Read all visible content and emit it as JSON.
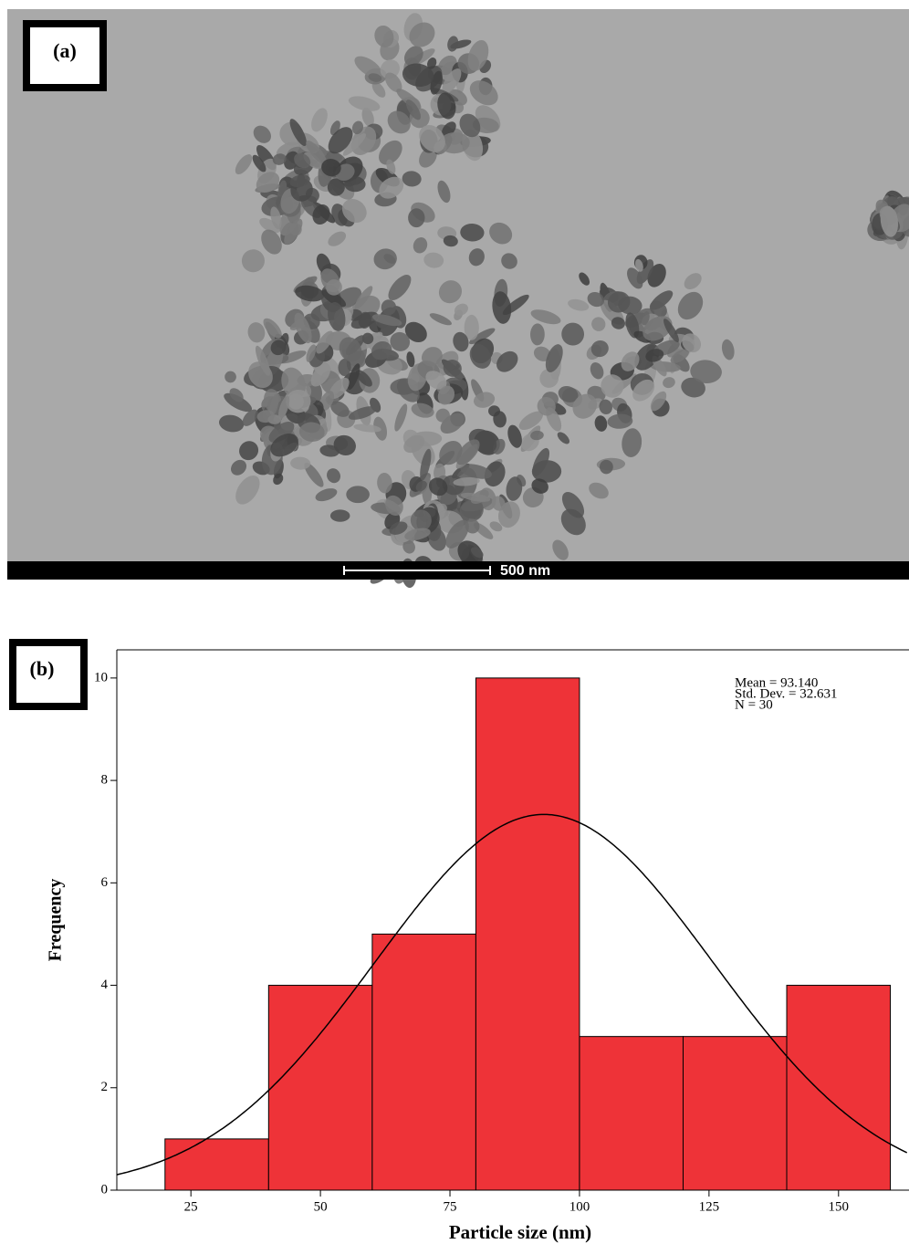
{
  "panel_a": {
    "label": "(a)",
    "scale_bar": "500 nm"
  },
  "chart_data": {
    "type": "histogram",
    "panel_label": "(b)",
    "bins": [
      20,
      40,
      60,
      80,
      100,
      120,
      140,
      160
    ],
    "values": [
      1,
      4,
      5,
      10,
      3,
      3,
      4
    ],
    "color": "#ee3338",
    "xlim": [
      10.7,
      163.6
    ],
    "ylim": [
      0,
      10.55
    ],
    "xticks": [
      25,
      50,
      75,
      100,
      125,
      150
    ],
    "yticks": [
      0,
      2,
      4,
      6,
      8,
      10
    ],
    "x_label": "Particle size (nm)",
    "y_label": "Frequency",
    "annotations": [
      {
        "value": 93.14,
        "label": "Mean = 93.140"
      },
      {
        "value": 32.631,
        "label": "Std. Dev. = 32.631"
      },
      {
        "value": 30,
        "label": "N = 30"
      }
    ]
  }
}
